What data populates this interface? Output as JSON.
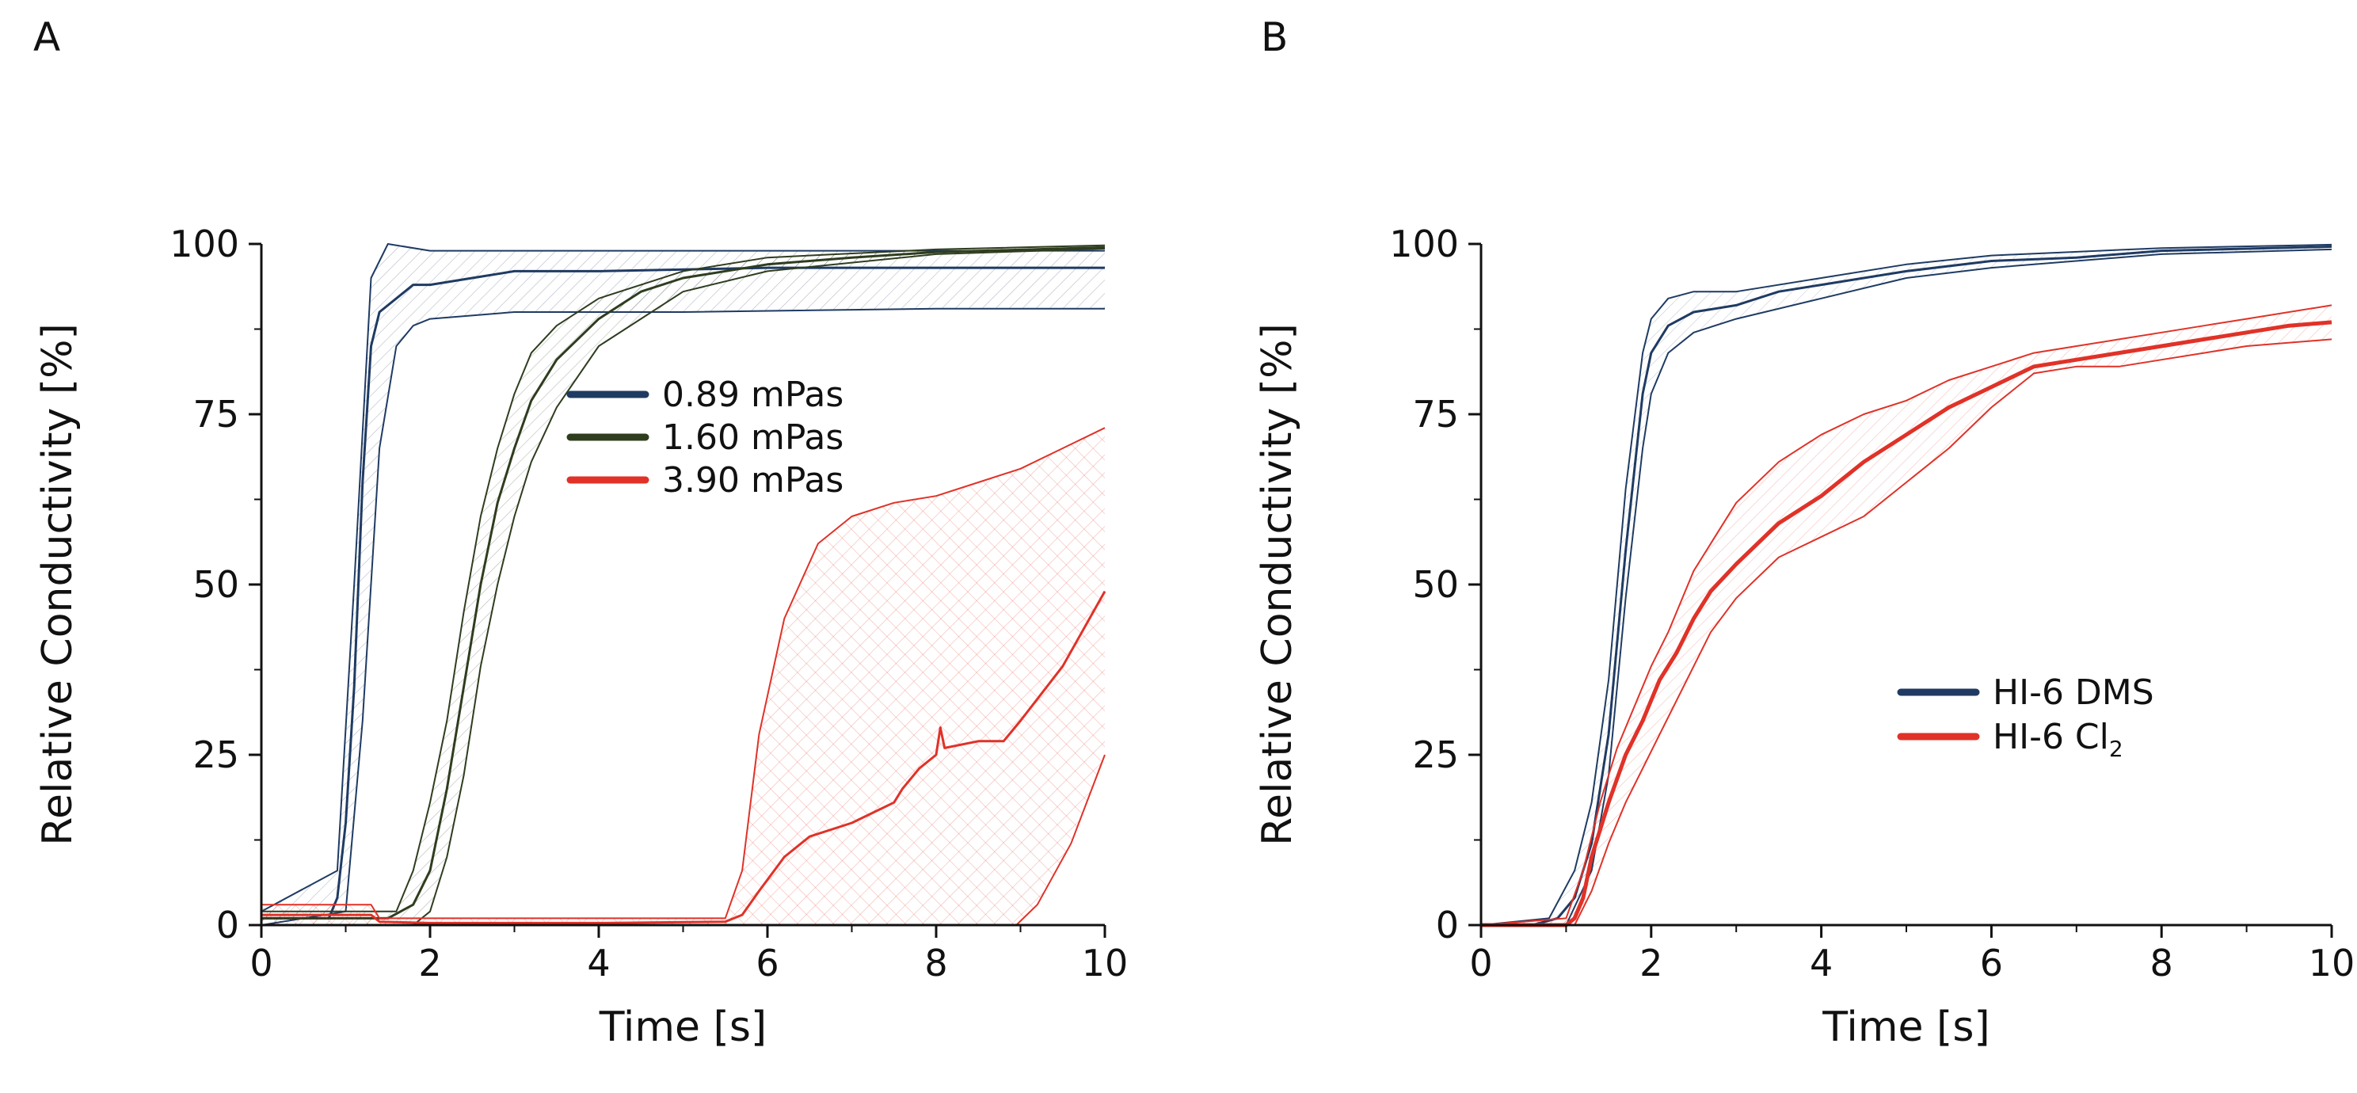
{
  "panels": {
    "A": {
      "letter": "A"
    },
    "B": {
      "letter": "B"
    }
  },
  "chart_data": [
    {
      "id": "A",
      "type": "line",
      "title": "",
      "xlabel": "Time [s]",
      "ylabel": "Relative Conductivity [%]",
      "xlim": [
        0,
        10
      ],
      "ylim": [
        0,
        100
      ],
      "xticks": [
        0,
        2,
        4,
        6,
        8,
        10
      ],
      "yticks": [
        0,
        25,
        50,
        75,
        100
      ],
      "legend": "upper-center",
      "series": [
        {
          "name": "0.89 mPas",
          "color": "#1f3b63",
          "mean": [
            [
              0,
              1
            ],
            [
              0.8,
              1
            ],
            [
              0.9,
              4
            ],
            [
              1.0,
              15
            ],
            [
              1.1,
              35
            ],
            [
              1.2,
              65
            ],
            [
              1.3,
              85
            ],
            [
              1.4,
              90
            ],
            [
              1.6,
              92
            ],
            [
              1.8,
              94
            ],
            [
              2.0,
              94
            ],
            [
              2.5,
              95
            ],
            [
              3.0,
              96
            ],
            [
              4.0,
              96
            ],
            [
              6.0,
              96.5
            ],
            [
              8.0,
              96.5
            ],
            [
              10.0,
              96.5
            ]
          ],
          "lower": [
            [
              0,
              0
            ],
            [
              1.0,
              2
            ],
            [
              1.2,
              30
            ],
            [
              1.4,
              70
            ],
            [
              1.6,
              85
            ],
            [
              1.8,
              88
            ],
            [
              2.0,
              89
            ],
            [
              3.0,
              90
            ],
            [
              5.0,
              90
            ],
            [
              8.0,
              90.5
            ],
            [
              10.0,
              90.5
            ]
          ],
          "upper": [
            [
              0,
              2
            ],
            [
              0.9,
              8
            ],
            [
              1.1,
              50
            ],
            [
              1.3,
              95
            ],
            [
              1.5,
              100
            ],
            [
              2.0,
              99
            ],
            [
              2.5,
              99
            ],
            [
              4.0,
              99
            ],
            [
              6.0,
              99
            ],
            [
              8.0,
              99
            ],
            [
              10.0,
              99
            ]
          ]
        },
        {
          "name": "1.60 mPas",
          "color": "#2f3d1f",
          "mean": [
            [
              0,
              1
            ],
            [
              1.5,
              1
            ],
            [
              1.8,
              3
            ],
            [
              2.0,
              8
            ],
            [
              2.2,
              20
            ],
            [
              2.4,
              35
            ],
            [
              2.6,
              50
            ],
            [
              2.8,
              62
            ],
            [
              3.0,
              70
            ],
            [
              3.2,
              77
            ],
            [
              3.5,
              83
            ],
            [
              4.0,
              89
            ],
            [
              4.5,
              93
            ],
            [
              5.0,
              95
            ],
            [
              6.0,
              97
            ],
            [
              7.0,
              98
            ],
            [
              8.0,
              98.8
            ],
            [
              10.0,
              99.5
            ]
          ],
          "lower": [
            [
              0,
              0
            ],
            [
              1.8,
              0
            ],
            [
              2.0,
              2
            ],
            [
              2.2,
              10
            ],
            [
              2.4,
              22
            ],
            [
              2.6,
              38
            ],
            [
              2.8,
              50
            ],
            [
              3.0,
              60
            ],
            [
              3.2,
              68
            ],
            [
              3.5,
              76
            ],
            [
              4.0,
              85
            ],
            [
              5.0,
              93
            ],
            [
              6.0,
              96
            ],
            [
              8.0,
              98.5
            ],
            [
              10.0,
              99.3
            ]
          ],
          "upper": [
            [
              0,
              2
            ],
            [
              1.6,
              2
            ],
            [
              1.8,
              8
            ],
            [
              2.0,
              18
            ],
            [
              2.2,
              30
            ],
            [
              2.4,
              46
            ],
            [
              2.6,
              60
            ],
            [
              2.8,
              70
            ],
            [
              3.0,
              78
            ],
            [
              3.2,
              84
            ],
            [
              3.5,
              88
            ],
            [
              4.0,
              92
            ],
            [
              5.0,
              96
            ],
            [
              6.0,
              98
            ],
            [
              8.0,
              99.2
            ],
            [
              10.0,
              99.8
            ]
          ]
        },
        {
          "name": "3.90 mPas",
          "color": "#e03228",
          "mean": [
            [
              0,
              1.5
            ],
            [
              1.3,
              1.5
            ],
            [
              1.4,
              0.5
            ],
            [
              2.0,
              0.3
            ],
            [
              4.0,
              0.3
            ],
            [
              5.5,
              0.5
            ],
            [
              5.7,
              1.5
            ],
            [
              5.9,
              5
            ],
            [
              6.2,
              10
            ],
            [
              6.5,
              13
            ],
            [
              7.0,
              15
            ],
            [
              7.5,
              18
            ],
            [
              7.6,
              20
            ],
            [
              7.8,
              23
            ],
            [
              8.0,
              25
            ],
            [
              8.05,
              29
            ],
            [
              8.1,
              26
            ],
            [
              8.5,
              27
            ],
            [
              8.8,
              27
            ],
            [
              9.0,
              30
            ],
            [
              9.5,
              38
            ],
            [
              10.0,
              49
            ]
          ],
          "lower": [
            [
              0,
              0
            ],
            [
              5.6,
              0
            ],
            [
              7.0,
              0
            ],
            [
              8.0,
              0
            ],
            [
              8.95,
              0
            ],
            [
              9.2,
              3
            ],
            [
              9.6,
              12
            ],
            [
              10.0,
              25
            ]
          ],
          "upper": [
            [
              0,
              3
            ],
            [
              1.3,
              3
            ],
            [
              1.4,
              1
            ],
            [
              5.5,
              1
            ],
            [
              5.7,
              8
            ],
            [
              5.9,
              28
            ],
            [
              6.2,
              45
            ],
            [
              6.6,
              56
            ],
            [
              7.0,
              60
            ],
            [
              7.5,
              62
            ],
            [
              8.0,
              63
            ],
            [
              8.5,
              65
            ],
            [
              9.0,
              67
            ],
            [
              9.5,
              70
            ],
            [
              10.0,
              73
            ]
          ]
        }
      ]
    },
    {
      "id": "B",
      "type": "line",
      "title": "",
      "xlabel": "Time [s]",
      "ylabel": "Relative Conductivity [%]",
      "xlim": [
        0,
        10
      ],
      "ylim": [
        0,
        100
      ],
      "xticks": [
        0,
        2,
        4,
        6,
        8,
        10
      ],
      "yticks": [
        0,
        25,
        50,
        75,
        100
      ],
      "legend": "lower-right",
      "series": [
        {
          "name": "HI-6 DMS",
          "color": "#1f3b63",
          "mean": [
            [
              0,
              0
            ],
            [
              0.6,
              0
            ],
            [
              0.9,
              1
            ],
            [
              1.1,
              4
            ],
            [
              1.3,
              12
            ],
            [
              1.5,
              28
            ],
            [
              1.7,
              55
            ],
            [
              1.9,
              78
            ],
            [
              2.0,
              84
            ],
            [
              2.2,
              88
            ],
            [
              2.5,
              90
            ],
            [
              3.0,
              91
            ],
            [
              3.5,
              93
            ],
            [
              4.0,
              94
            ],
            [
              5.0,
              96
            ],
            [
              6.0,
              97.5
            ],
            [
              7.0,
              98
            ],
            [
              8.0,
              99
            ],
            [
              9.0,
              99.3
            ],
            [
              10.0,
              99.6
            ]
          ],
          "lower": [
            [
              0,
              0
            ],
            [
              1.0,
              0
            ],
            [
              1.3,
              8
            ],
            [
              1.5,
              22
            ],
            [
              1.7,
              48
            ],
            [
              1.9,
              70
            ],
            [
              2.0,
              78
            ],
            [
              2.2,
              84
            ],
            [
              2.5,
              87
            ],
            [
              3.0,
              89
            ],
            [
              4.0,
              92
            ],
            [
              5.0,
              95
            ],
            [
              6.0,
              96.5
            ],
            [
              8.0,
              98.5
            ],
            [
              10.0,
              99.2
            ]
          ],
          "upper": [
            [
              0,
              0
            ],
            [
              0.8,
              1
            ],
            [
              1.1,
              8
            ],
            [
              1.3,
              18
            ],
            [
              1.5,
              36
            ],
            [
              1.7,
              64
            ],
            [
              1.9,
              84
            ],
            [
              2.0,
              89
            ],
            [
              2.2,
              92
            ],
            [
              2.5,
              93
            ],
            [
              3.0,
              93
            ],
            [
              4.0,
              95
            ],
            [
              5.0,
              97
            ],
            [
              6.0,
              98.3
            ],
            [
              8.0,
              99.4
            ],
            [
              10.0,
              99.9
            ]
          ]
        },
        {
          "name": "HI-6 Cl",
          "subscript": "2",
          "color": "#e03228",
          "mean": [
            [
              0,
              0
            ],
            [
              1.0,
              0
            ],
            [
              1.1,
              1
            ],
            [
              1.2,
              4
            ],
            [
              1.3,
              10
            ],
            [
              1.5,
              18
            ],
            [
              1.7,
              25
            ],
            [
              1.9,
              30
            ],
            [
              2.1,
              36
            ],
            [
              2.3,
              40
            ],
            [
              2.5,
              45
            ],
            [
              2.7,
              49
            ],
            [
              3.0,
              53
            ],
            [
              3.5,
              59
            ],
            [
              4.0,
              63
            ],
            [
              4.5,
              68
            ],
            [
              5.0,
              72
            ],
            [
              5.5,
              76
            ],
            [
              6.0,
              79
            ],
            [
              6.5,
              82
            ],
            [
              7.0,
              83
            ],
            [
              7.5,
              84
            ],
            [
              8.0,
              85
            ],
            [
              8.5,
              86
            ],
            [
              9.0,
              87
            ],
            [
              9.5,
              88
            ],
            [
              10.0,
              88.5
            ]
          ],
          "lower": [
            [
              0,
              0
            ],
            [
              1.1,
              0
            ],
            [
              1.3,
              5
            ],
            [
              1.5,
              12
            ],
            [
              1.7,
              18
            ],
            [
              1.9,
              23
            ],
            [
              2.1,
              28
            ],
            [
              2.3,
              33
            ],
            [
              2.5,
              38
            ],
            [
              2.7,
              43
            ],
            [
              3.0,
              48
            ],
            [
              3.5,
              54
            ],
            [
              4.0,
              57
            ],
            [
              4.5,
              60
            ],
            [
              5.0,
              65
            ],
            [
              5.5,
              70
            ],
            [
              6.0,
              76
            ],
            [
              6.5,
              81
            ],
            [
              7.0,
              82
            ],
            [
              7.5,
              82
            ],
            [
              8.0,
              83
            ],
            [
              8.5,
              84
            ],
            [
              9.0,
              85
            ],
            [
              10.0,
              86
            ]
          ],
          "upper": [
            [
              0,
              0
            ],
            [
              1.0,
              1
            ],
            [
              1.2,
              8
            ],
            [
              1.4,
              18
            ],
            [
              1.6,
              26
            ],
            [
              1.8,
              32
            ],
            [
              2.0,
              38
            ],
            [
              2.2,
              43
            ],
            [
              2.5,
              52
            ],
            [
              2.8,
              58
            ],
            [
              3.0,
              62
            ],
            [
              3.5,
              68
            ],
            [
              4.0,
              72
            ],
            [
              4.5,
              75
            ],
            [
              5.0,
              77
            ],
            [
              5.5,
              80
            ],
            [
              6.0,
              82
            ],
            [
              6.5,
              84
            ],
            [
              7.0,
              85
            ],
            [
              7.5,
              86
            ],
            [
              8.0,
              87
            ],
            [
              8.5,
              88
            ],
            [
              9.0,
              89
            ],
            [
              10.0,
              91
            ]
          ]
        }
      ]
    }
  ]
}
